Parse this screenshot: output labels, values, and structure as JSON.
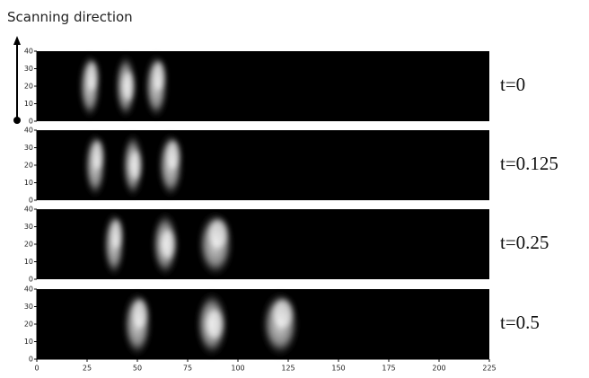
{
  "title": "Scanning direction",
  "chart_data": [
    {
      "type": "image",
      "label": "t=0",
      "xlim": [
        0,
        225
      ],
      "ylim": [
        0,
        40
      ],
      "yticks": [
        0,
        10,
        20,
        30,
        40
      ]
    },
    {
      "type": "image",
      "label": "t=0.125",
      "xlim": [
        0,
        225
      ],
      "ylim": [
        0,
        40
      ],
      "yticks": [
        0,
        10,
        20,
        30,
        40
      ]
    },
    {
      "type": "image",
      "label": "t=0.25",
      "xlim": [
        0,
        225
      ],
      "ylim": [
        0,
        40
      ],
      "yticks": [
        0,
        10,
        20,
        30,
        40
      ]
    },
    {
      "type": "image",
      "label": "t=0.5",
      "xlim": [
        0,
        225
      ],
      "ylim": [
        0,
        40
      ],
      "yticks": [
        0,
        10,
        20,
        30,
        40
      ],
      "xticks": [
        0,
        25,
        50,
        75,
        100,
        125,
        150,
        175,
        200,
        225
      ]
    }
  ]
}
